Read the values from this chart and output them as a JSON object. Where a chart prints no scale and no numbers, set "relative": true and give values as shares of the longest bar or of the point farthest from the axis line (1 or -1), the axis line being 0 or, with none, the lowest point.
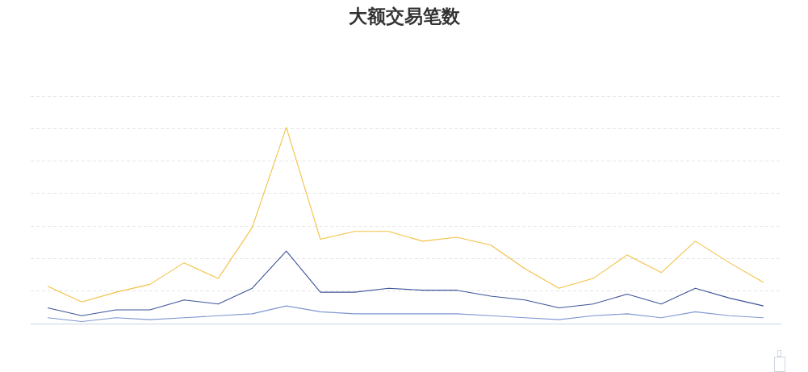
{
  "chart_data": {
    "type": "line",
    "title": "大额交易笔数",
    "categories": [
      null,
      null,
      null,
      null,
      null,
      null,
      null,
      null,
      null,
      null,
      null,
      null,
      null,
      null,
      null,
      null,
      null,
      null,
      null,
      null,
      null,
      null
    ],
    "relative": true,
    "series": [
      {
        "color": "#f3c143",
        "values": [
          0.19,
          0.11,
          0.16,
          0.2,
          0.31,
          0.23,
          0.49,
          1,
          0.43,
          0.47,
          0.47,
          0.42,
          0.44,
          0.4,
          0.28,
          0.18,
          0.23,
          0.35,
          0.26,
          0.42,
          0.31,
          0.21
        ]
      },
      {
        "color": "#3f5499",
        "values": [
          0.08,
          0.04,
          0.07,
          0.07,
          0.12,
          0.1,
          0.18,
          0.37,
          0.16,
          0.16,
          0.18,
          0.17,
          0.17,
          0.14,
          0.12,
          0.08,
          0.1,
          0.15,
          0.1,
          0.18,
          0.13,
          0.09
        ]
      },
      {
        "color": "#7f97d1",
        "values": [
          0.03,
          0.01,
          0.03,
          0.02,
          0.03,
          0.04,
          0.05,
          0.09,
          0.06,
          0.05,
          0.05,
          0.05,
          0.05,
          0.04,
          0.03,
          0.02,
          0.04,
          0.05,
          0.03,
          0.06,
          0.04,
          0.03
        ]
      }
    ],
    "grid": "y",
    "marker": "none"
  }
}
